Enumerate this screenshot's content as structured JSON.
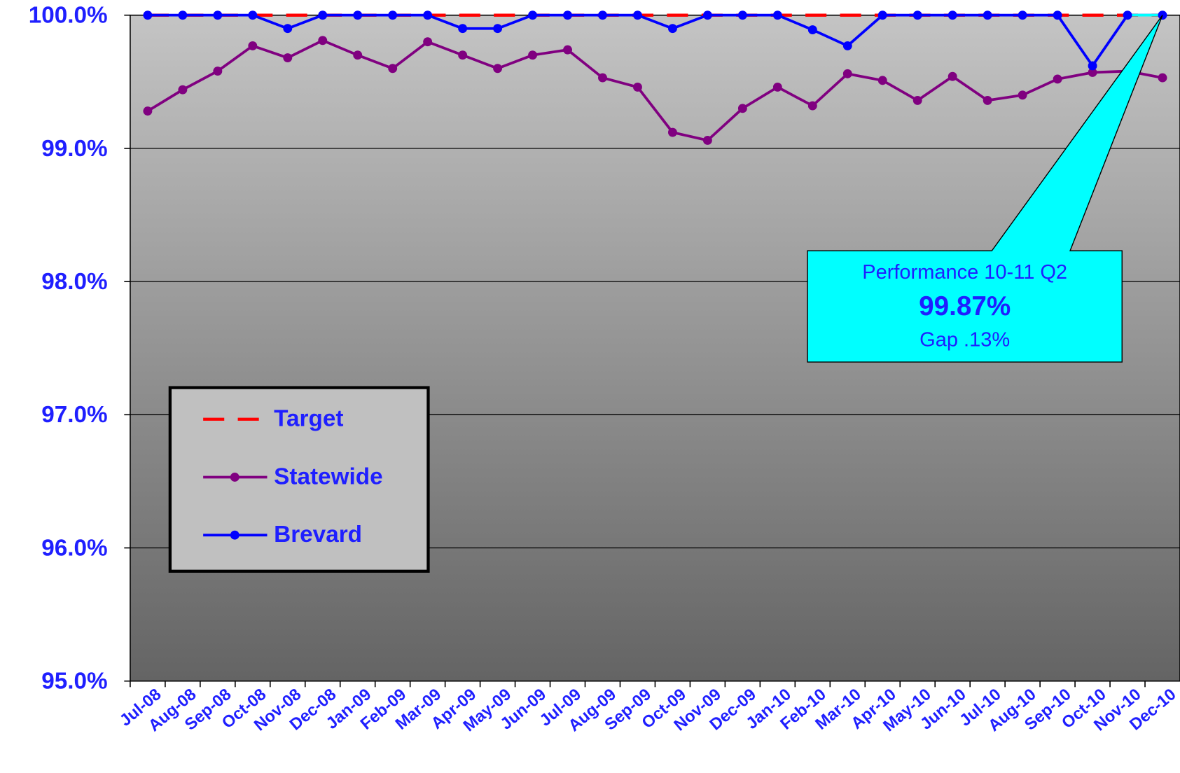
{
  "chart_data": {
    "type": "line",
    "categories": [
      "Jul-08",
      "Aug-08",
      "Sep-08",
      "Oct-08",
      "Nov-08",
      "Dec-08",
      "Jan-09",
      "Feb-09",
      "Mar-09",
      "Apr-09",
      "May-09",
      "Jun-09",
      "Jul-09",
      "Aug-09",
      "Sep-09",
      "Oct-09",
      "Nov-09",
      "Dec-09",
      "Jan-10",
      "Feb-10",
      "Mar-10",
      "Apr-10",
      "May-10",
      "Jun-10",
      "Jul-10",
      "Aug-10",
      "Sep-10",
      "Oct-10",
      "Nov-10",
      "Dec-10"
    ],
    "series": [
      {
        "name": "Target",
        "color": "#ff0000",
        "dashed": true,
        "markers": false,
        "values": [
          100,
          100,
          100,
          100,
          100,
          100,
          100,
          100,
          100,
          100,
          100,
          100,
          100,
          100,
          100,
          100,
          100,
          100,
          100,
          100,
          100,
          100,
          100,
          100,
          100,
          100,
          100,
          100,
          100,
          100
        ]
      },
      {
        "name": "Statewide",
        "color": "#800080",
        "dashed": false,
        "markers": true,
        "values": [
          99.28,
          99.44,
          99.58,
          99.77,
          99.68,
          99.81,
          99.7,
          99.6,
          99.8,
          99.7,
          99.6,
          99.7,
          99.74,
          99.53,
          99.46,
          99.12,
          99.06,
          99.3,
          99.46,
          99.32,
          99.56,
          99.51,
          99.36,
          99.54,
          99.36,
          99.4,
          99.52,
          99.57,
          99.58,
          99.53
        ]
      },
      {
        "name": "Brevard",
        "color": "#0000ff",
        "dashed": false,
        "markers": true,
        "last_segment_color": "#00ffff",
        "values": [
          100,
          100,
          100,
          100,
          99.9,
          100,
          100,
          100,
          100,
          99.9,
          99.9,
          100,
          100,
          100,
          100,
          99.9,
          100,
          100,
          100,
          99.89,
          99.77,
          100,
          100,
          100,
          100,
          100,
          100,
          99.62,
          100,
          100
        ]
      }
    ],
    "ylim": [
      95,
      100
    ],
    "yticks": [
      {
        "value": 95,
        "label": "95.0%"
      },
      {
        "value": 96,
        "label": "96.0%"
      },
      {
        "value": 97,
        "label": "97.0%"
      },
      {
        "value": 98,
        "label": "98.0%"
      },
      {
        "value": 99,
        "label": "99.0%"
      },
      {
        "value": 100,
        "label": "100.0%"
      }
    ],
    "grid": true,
    "legend": "left",
    "annotation": {
      "lines": [
        "Performance 10-11 Q2",
        "99.87%",
        "Gap .13%"
      ],
      "color": "#00ffff"
    }
  }
}
